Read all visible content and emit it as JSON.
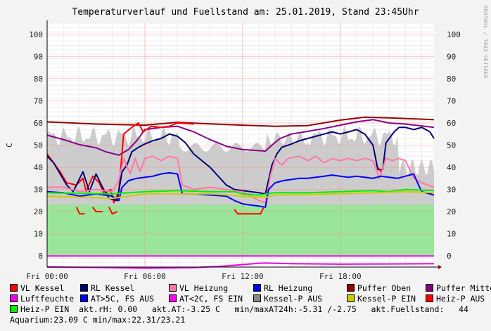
{
  "title": "Temperaturverlauf und Fuellstand am: 25.01.2019, Stand 23:45Uhr",
  "watermark": "RRDTOOL / TOBI OETIKER",
  "chart_data": {
    "type": "line",
    "ylabel": "C",
    "ylim": [
      -5,
      105
    ],
    "y_ticks": [
      0,
      10,
      20,
      30,
      40,
      50,
      60,
      70,
      80,
      90,
      100
    ],
    "x_ticks": [
      "Fri 00:00",
      "Fri 06:00",
      "Fri 12:00",
      "Fri 18:00"
    ],
    "x_tick_hours": [
      0,
      6,
      12,
      18
    ],
    "xlim_hours": [
      0,
      23.75
    ],
    "series": [
      {
        "name": "Puffer Oben",
        "color": "#990000",
        "points": [
          [
            0,
            60.5
          ],
          [
            3,
            59.5
          ],
          [
            6,
            59
          ],
          [
            8,
            60.3
          ],
          [
            10,
            59.6
          ],
          [
            12,
            59
          ],
          [
            14,
            58.5
          ],
          [
            16,
            58.8
          ],
          [
            18,
            61.3
          ],
          [
            19.5,
            62.6
          ],
          [
            21,
            62.3
          ],
          [
            23.75,
            61.5
          ]
        ]
      },
      {
        "name": "Puffer Mitte",
        "color": "#880088",
        "points": [
          [
            0,
            54.5
          ],
          [
            1,
            52.5
          ],
          [
            2,
            50.2
          ],
          [
            3,
            48.8
          ],
          [
            3.6,
            47
          ],
          [
            4.4,
            45.5
          ],
          [
            5,
            48
          ],
          [
            5.5,
            52
          ],
          [
            6,
            57
          ],
          [
            7,
            58
          ],
          [
            8,
            58.5
          ],
          [
            9,
            56
          ],
          [
            10,
            52.5
          ],
          [
            11,
            49.5
          ],
          [
            12,
            48
          ],
          [
            13.4,
            47.3
          ],
          [
            13.8,
            50
          ],
          [
            14.3,
            53
          ],
          [
            15,
            55
          ],
          [
            16,
            56.2
          ],
          [
            17,
            57.5
          ],
          [
            18,
            59
          ],
          [
            19,
            60.5
          ],
          [
            20,
            61.5
          ],
          [
            21,
            60
          ],
          [
            22,
            59.5
          ],
          [
            23.75,
            58
          ]
        ]
      },
      {
        "name": "VL Kessel",
        "color": "#ff0000",
        "points": [
          [
            0,
            46
          ],
          [
            0.4,
            42
          ],
          [
            0.8,
            38
          ],
          [
            1.2,
            33
          ],
          [
            1.8,
            32
          ],
          [
            2.2,
            35
          ],
          [
            2.4,
            29
          ],
          [
            2.8,
            36
          ],
          [
            3.2,
            33
          ],
          [
            3.5,
            28
          ],
          [
            3.9,
            30
          ],
          [
            4.1,
            24
          ],
          [
            4.4,
            29
          ],
          [
            4.7,
            55
          ],
          [
            5.2,
            58
          ],
          [
            5.6,
            60
          ],
          [
            5.9,
            56
          ],
          [
            6.4,
            58.5
          ],
          [
            7,
            58
          ],
          [
            7.5,
            58.5
          ],
          [
            8,
            60
          ],
          [
            9,
            59.5
          ]
        ]
      },
      {
        "name": "RL Kessel",
        "color": "#000077",
        "points": [
          [
            0,
            45
          ],
          [
            0.4,
            42
          ],
          [
            0.8,
            37
          ],
          [
            1.2,
            32
          ],
          [
            1.6,
            29
          ],
          [
            2.2,
            38
          ],
          [
            2.6,
            29
          ],
          [
            3,
            37
          ],
          [
            3.4,
            31
          ],
          [
            3.8,
            26
          ],
          [
            4.3,
            25
          ],
          [
            4.6,
            38
          ],
          [
            4.9,
            41
          ],
          [
            5.2,
            47
          ],
          [
            5.6,
            49
          ],
          [
            6,
            50.5
          ],
          [
            6.5,
            52
          ],
          [
            7,
            53
          ],
          [
            7.5,
            55
          ],
          [
            8,
            54
          ],
          [
            8.5,
            51
          ],
          [
            9,
            46
          ],
          [
            9.5,
            43
          ],
          [
            10,
            40
          ],
          [
            10.5,
            36
          ],
          [
            11,
            32
          ],
          [
            11.5,
            30
          ],
          [
            12,
            29.5
          ],
          [
            12.5,
            29
          ],
          [
            13,
            28.5
          ],
          [
            13.4,
            28
          ],
          [
            13.8,
            41
          ],
          [
            14.1,
            46
          ],
          [
            14.4,
            49
          ],
          [
            15,
            50.5
          ],
          [
            15.5,
            52
          ],
          [
            16,
            53
          ],
          [
            16.5,
            54
          ],
          [
            17,
            55
          ],
          [
            17.5,
            56
          ],
          [
            18,
            55
          ],
          [
            18.5,
            56
          ],
          [
            19,
            57
          ],
          [
            19.5,
            55
          ],
          [
            20,
            50
          ],
          [
            20.3,
            39
          ],
          [
            20.6,
            39
          ],
          [
            20.8,
            51
          ],
          [
            21,
            53
          ],
          [
            21.3,
            56
          ],
          [
            21.6,
            58
          ],
          [
            22,
            58
          ],
          [
            22.5,
            57
          ],
          [
            23,
            58
          ],
          [
            23.5,
            56
          ],
          [
            23.75,
            53
          ]
        ]
      },
      {
        "name": "VL Heizung",
        "color": "#ff77aa",
        "points": [
          [
            0,
            31
          ],
          [
            1,
            31
          ],
          [
            2,
            29
          ],
          [
            3,
            30
          ],
          [
            4,
            29
          ],
          [
            4.4,
            34
          ],
          [
            4.7,
            44
          ],
          [
            5.1,
            37
          ],
          [
            5.4,
            44
          ],
          [
            5.7,
            38
          ],
          [
            6,
            44
          ],
          [
            6.5,
            45
          ],
          [
            7,
            43
          ],
          [
            7.5,
            45
          ],
          [
            8,
            44
          ],
          [
            8.3,
            32
          ],
          [
            9,
            30
          ],
          [
            10,
            31
          ],
          [
            11,
            30
          ],
          [
            12,
            29
          ],
          [
            13,
            25
          ],
          [
            13.4,
            24
          ],
          [
            13.7,
            36
          ],
          [
            14,
            44
          ],
          [
            14.4,
            41
          ],
          [
            14.8,
            44
          ],
          [
            15.5,
            45
          ],
          [
            16,
            43
          ],
          [
            16.5,
            45
          ],
          [
            17,
            42
          ],
          [
            17.5,
            44
          ],
          [
            18,
            43
          ],
          [
            18.5,
            44
          ],
          [
            19,
            43
          ],
          [
            19.5,
            44
          ],
          [
            20,
            43
          ],
          [
            20.4,
            35
          ],
          [
            20.8,
            44
          ],
          [
            21.2,
            43
          ],
          [
            21.6,
            44
          ],
          [
            22,
            43
          ],
          [
            22.5,
            35
          ],
          [
            23,
            33
          ],
          [
            23.75,
            31
          ]
        ]
      },
      {
        "name": "RL Heizung",
        "color": "#0000ff",
        "points": [
          [
            0,
            29
          ],
          [
            1,
            28.5
          ],
          [
            2,
            27
          ],
          [
            3,
            28
          ],
          [
            4,
            27
          ],
          [
            4.4,
            25
          ],
          [
            4.6,
            31
          ],
          [
            5,
            34
          ],
          [
            5.5,
            35
          ],
          [
            6,
            35.5
          ],
          [
            6.5,
            36
          ],
          [
            7,
            37
          ],
          [
            7.5,
            37.5
          ],
          [
            8,
            37
          ],
          [
            8.3,
            28
          ],
          [
            9,
            28
          ],
          [
            10,
            27.5
          ],
          [
            11,
            27
          ],
          [
            11.5,
            25
          ],
          [
            12,
            23.5
          ],
          [
            12.5,
            23
          ],
          [
            13,
            22.5
          ],
          [
            13.4,
            22
          ],
          [
            13.6,
            30
          ],
          [
            14,
            33
          ],
          [
            14.5,
            34
          ],
          [
            15,
            34.5
          ],
          [
            15.5,
            35
          ],
          [
            16,
            35
          ],
          [
            17,
            36
          ],
          [
            17.5,
            36.5
          ],
          [
            18,
            36
          ],
          [
            18.5,
            35.5
          ],
          [
            19,
            36
          ],
          [
            19.5,
            35.5
          ],
          [
            20,
            35
          ],
          [
            20.5,
            36
          ],
          [
            21,
            35.5
          ],
          [
            21.5,
            35
          ],
          [
            22,
            36
          ],
          [
            22.5,
            37
          ],
          [
            22.8,
            32
          ],
          [
            23,
            29
          ],
          [
            23.75,
            27.5
          ]
        ]
      },
      {
        "name": "Heiz-P EIN",
        "color": "#00ee00",
        "points": [
          [
            0,
            28.5
          ],
          [
            4,
            28
          ],
          [
            6,
            29
          ],
          [
            8,
            29.5
          ],
          [
            10,
            29
          ],
          [
            11.5,
            29
          ],
          [
            12,
            28
          ],
          [
            13,
            27.5
          ],
          [
            14,
            28.5
          ],
          [
            16,
            28.5
          ],
          [
            18,
            29
          ],
          [
            20,
            29.5
          ],
          [
            21,
            29
          ],
          [
            22,
            30
          ],
          [
            23.75,
            29.5
          ]
        ]
      },
      {
        "name": "Kessel-P EIN",
        "color": "#cccc00",
        "points": [
          [
            0,
            27
          ],
          [
            4,
            26
          ],
          [
            6,
            28
          ],
          [
            10,
            28
          ],
          [
            12,
            27
          ],
          [
            13.5,
            26.5
          ],
          [
            14,
            27.5
          ],
          [
            18,
            28
          ],
          [
            22,
            29
          ],
          [
            23.75,
            28.5
          ]
        ]
      },
      {
        "name": "Luftfeuchte",
        "color": "#ee00ee",
        "points": [
          [
            0,
            -5
          ],
          [
            3,
            -5.2
          ],
          [
            6,
            -5.5
          ],
          [
            9,
            -5.3
          ],
          [
            11,
            -4.5
          ],
          [
            13,
            -3.3
          ],
          [
            13.5,
            -3.2
          ],
          [
            15,
            -3.5
          ],
          [
            18,
            -3.7
          ],
          [
            21,
            -3.6
          ],
          [
            23.75,
            -3.5
          ]
        ]
      },
      {
        "name": "AT<2C, FS EIN",
        "color": "#ff00ff",
        "points": [
          [
            0,
            0
          ],
          [
            23.75,
            0
          ]
        ]
      }
    ],
    "fill_series": [
      {
        "name": "Kessel-P AUS",
        "color": "#cccccc"
      },
      {
        "name": "akt.Fuellstand",
        "color": "#99e699"
      }
    ]
  },
  "legend": [
    [
      {
        "label": "VL Kessel",
        "color": "#ff0000"
      },
      {
        "label": "RL Kessel",
        "color": "#000077"
      },
      {
        "label": "VL Heizung",
        "color": "#ff77aa"
      },
      {
        "label": "RL Heizung",
        "color": "#0000ff"
      },
      {
        "label": "Puffer Oben",
        "color": "#990000"
      },
      {
        "label": "Puffer Mitte",
        "color": "#880088"
      }
    ],
    [
      {
        "label": "Luftfeuchte",
        "color": "#ee00ee"
      },
      {
        "label": "AT>5C, FS AUS",
        "color": "#0000ff"
      },
      {
        "label": "AT<2C, FS EIN",
        "color": "#ff00ff"
      },
      {
        "label": "Kessel-P AUS",
        "color": "#888888"
      },
      {
        "label": "Kessel-P EIN",
        "color": "#cccc00"
      },
      {
        "label": "Heiz-P AUS",
        "color": "#ff0000"
      }
    ]
  ],
  "status_line": {
    "swatch_label": "Heiz-P EIN",
    "swatch_color": "#00ee00",
    "text": "  akt.rH: 0.00   akt.AT:-3.25 C   min/maxAT24h:-5.31 /-2.75   akt.Fuellstand:   44"
  },
  "aquarium_line": "Aquarium:23.09 C  min/max:22.31/23.21"
}
